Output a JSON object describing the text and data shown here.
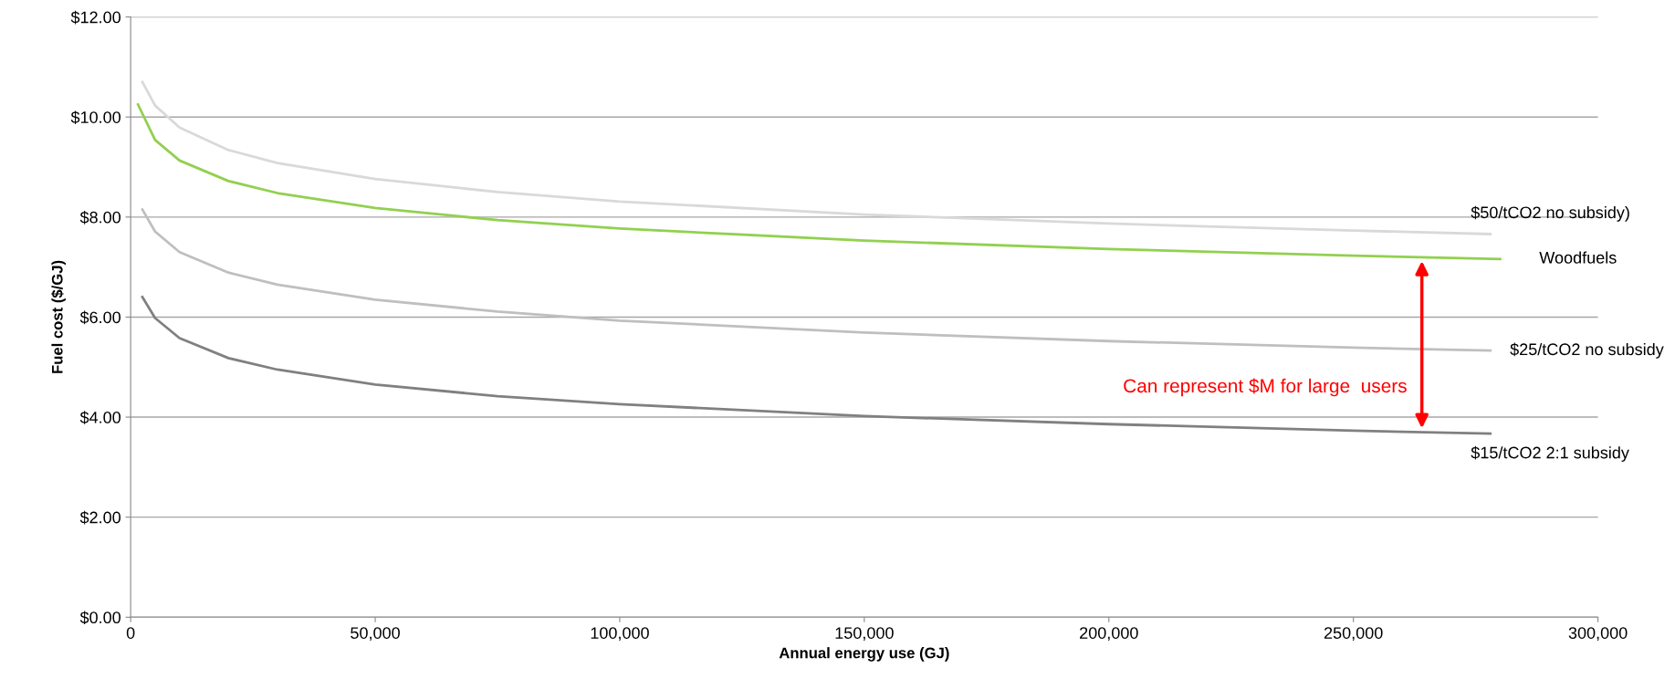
{
  "chart_data": {
    "type": "line",
    "xlabel": "Annual energy use (GJ)",
    "ylabel": "Fuel cost ($/GJ)",
    "xlim": [
      0,
      300000
    ],
    "xticks": [
      0,
      {
        "value": 50000,
        "label": "50,000"
      },
      {
        "value": 100000,
        "label": "100,000"
      },
      {
        "value": 150000,
        "label": "150,000"
      },
      {
        "value": 200000,
        "label": "200,000"
      },
      {
        "value": 250000,
        "label": "250,000"
      },
      {
        "value": 300000,
        "label": "300,000"
      }
    ],
    "ylim": [
      0,
      12
    ],
    "yticks": [
      {
        "value": 0,
        "label": "$0.00"
      },
      {
        "value": 2,
        "label": "$2.00"
      },
      {
        "value": 4,
        "label": "$4.00"
      },
      {
        "value": 6,
        "label": "$6.00"
      },
      {
        "value": 8,
        "label": "$8.00"
      },
      {
        "value": 10,
        "label": "$10.00"
      },
      {
        "value": 12,
        "label": "$12.00"
      }
    ],
    "grid": "y",
    "marker": "none",
    "line_style": "solid",
    "legend": false,
    "series": [
      {
        "name": "$50/tCO2 no subsidy)",
        "color": "#d9d9d9",
        "x": [
          2400,
          5000,
          10000,
          20000,
          30000,
          50000,
          75000,
          100000,
          150000,
          200000,
          250000,
          278000
        ],
        "values": [
          10.7,
          10.23,
          9.79,
          9.34,
          9.08,
          8.76,
          8.5,
          8.31,
          8.05,
          7.87,
          7.73,
          7.66
        ]
      },
      {
        "name": "Woodfuels",
        "color": "#92d050",
        "x": [
          1500,
          5000,
          10000,
          20000,
          30000,
          50000,
          75000,
          100000,
          150000,
          200000,
          250000,
          280000
        ],
        "values": [
          10.25,
          9.54,
          9.13,
          8.72,
          8.48,
          8.18,
          7.94,
          7.77,
          7.53,
          7.36,
          7.23,
          7.16
        ]
      },
      {
        "name": "$25/tCO2 no subsidy",
        "color": "#bfbfbf",
        "x": [
          2400,
          5000,
          10000,
          20000,
          30000,
          50000,
          75000,
          100000,
          150000,
          200000,
          250000,
          278000
        ],
        "values": [
          8.15,
          7.71,
          7.3,
          6.89,
          6.65,
          6.35,
          6.11,
          5.93,
          5.69,
          5.52,
          5.39,
          5.33
        ]
      },
      {
        "name": "$15/tCO2 2:1 subsidy",
        "color": "#808080",
        "x": [
          2400,
          5000,
          10000,
          20000,
          30000,
          50000,
          75000,
          100000,
          150000,
          200000,
          250000,
          278000
        ],
        "values": [
          6.4,
          5.98,
          5.58,
          5.18,
          4.95,
          4.65,
          4.42,
          4.26,
          4.02,
          3.86,
          3.73,
          3.67
        ]
      }
    ],
    "annotations": [
      "Can represent $M for large  users"
    ]
  }
}
